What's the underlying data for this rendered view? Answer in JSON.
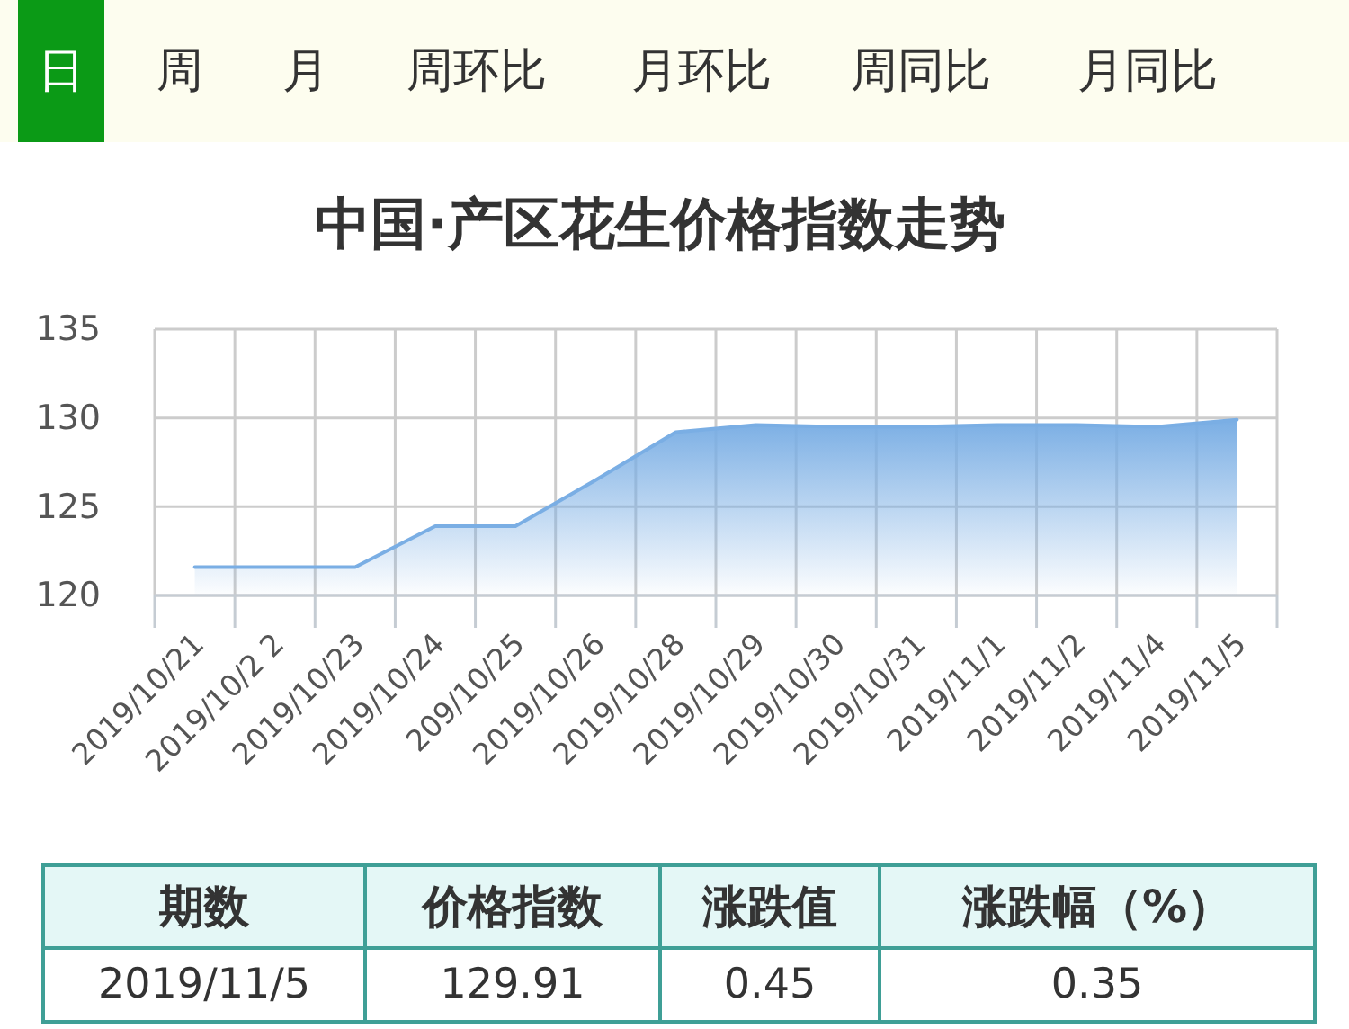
{
  "chart_data": [
    {
      "type": "other",
      "annotations": [
        "日",
        "周",
        "月",
        "周环比",
        "月环比",
        "周同比",
        "月同比"
      ]
    },
    {
      "type": "area",
      "title": "中国·产区花生价格指数走势",
      "categories": [
        "2019/10/21",
        "2019/10/2 2",
        "2019/10/23",
        "2019/10/24",
        "209/10/25",
        "2019/10/26",
        "2019/10/28",
        "2019/10/29",
        "2019/10/30",
        "2019/10/31",
        "2019/11/1",
        "2019/11/2",
        "2019/11/4",
        "2019/11/5"
      ],
      "values": [
        121.6,
        121.6,
        121.6,
        123.9,
        123.9,
        126.5,
        129.2,
        129.6,
        129.5,
        129.5,
        129.6,
        129.6,
        129.5,
        129.9
      ],
      "color": "#7aaee4",
      "ylim": [
        120,
        135
      ],
      "yticks": [
        120,
        125,
        130,
        135
      ],
      "grid": true
    },
    {
      "type": "other",
      "categories": [
        "期数",
        "价格指数",
        "涨跌值",
        "涨跌幅（%）"
      ],
      "annotations": [
        "2019/11/5",
        "129.91",
        "0.45",
        "0.35"
      ]
    }
  ]
}
